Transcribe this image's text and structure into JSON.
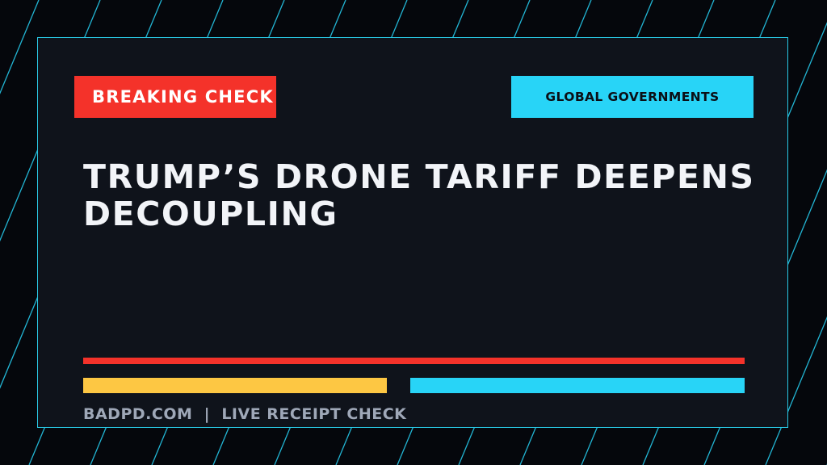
{
  "badges": {
    "left_label": "BREAKING CHECK",
    "right_label": "GLOBAL GOVERNMENTS"
  },
  "headline": "TRUMP’S DRONE TARIFF DEEPENS DECOUPLING",
  "footer": {
    "site": "BADPD.COM",
    "separator": "|",
    "tagline": "LIVE RECEIPT CHECK"
  },
  "colors": {
    "background": "#05070c",
    "card": "#0f131b",
    "accent_cyan": "#28d4f7",
    "accent_red": "#f4322a",
    "accent_yellow": "#fdc743",
    "headline_text": "#f2f4f8",
    "footer_text": "#9fa8b8"
  }
}
